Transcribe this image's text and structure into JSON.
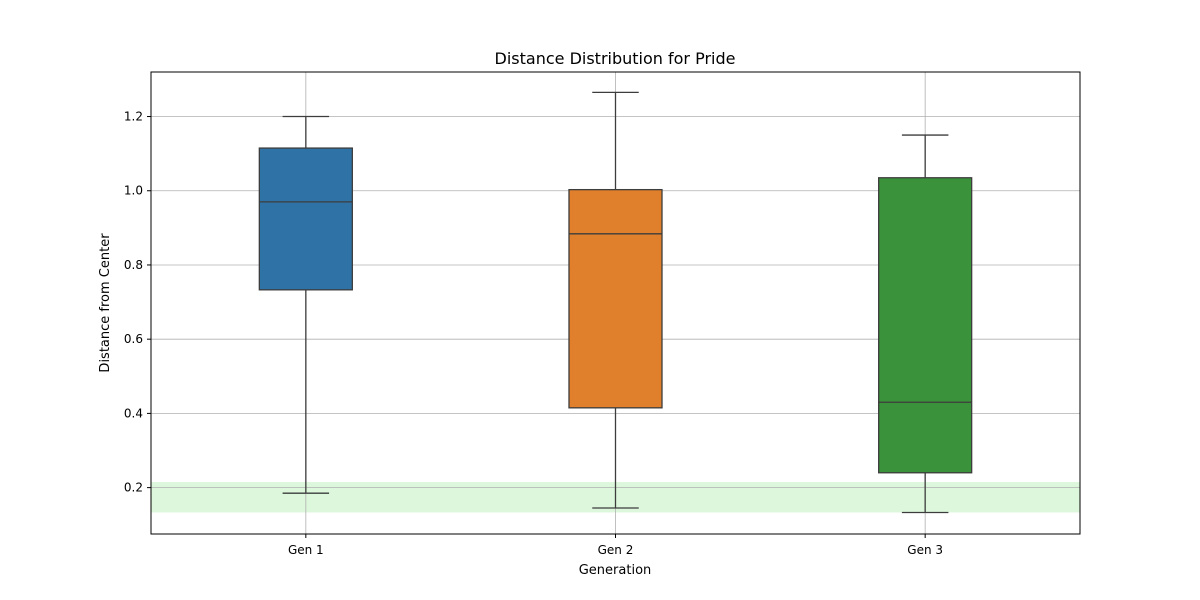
{
  "chart_data": {
    "type": "box",
    "title": "Distance Distribution for Pride",
    "xlabel": "Generation",
    "ylabel": "Distance from Center",
    "categories": [
      "Gen 1",
      "Gen 2",
      "Gen 3"
    ],
    "ylim": [
      0.075,
      1.32
    ],
    "yticks": [
      0.2,
      0.4,
      0.6,
      0.8,
      1.0,
      1.2
    ],
    "ytick_labels": [
      "0.2",
      "0.4",
      "0.6",
      "0.8",
      "1.0",
      "1.2"
    ],
    "grid": true,
    "boxes": [
      {
        "category": "Gen 1",
        "whisker_low": 0.185,
        "q1": 0.733,
        "median": 0.97,
        "q3": 1.115,
        "whisker_high": 1.2,
        "color": "#2f73a6"
      },
      {
        "category": "Gen 2",
        "whisker_low": 0.145,
        "q1": 0.415,
        "median": 0.884,
        "q3": 1.003,
        "whisker_high": 1.265,
        "color": "#e0802c"
      },
      {
        "category": "Gen 3",
        "whisker_low": 0.133,
        "q1": 0.24,
        "median": 0.43,
        "q3": 1.035,
        "whisker_high": 1.15,
        "color": "#3a923a"
      }
    ],
    "highlight_band": {
      "y_low": 0.133,
      "y_high": 0.215,
      "color": "#dcf7dc"
    }
  }
}
